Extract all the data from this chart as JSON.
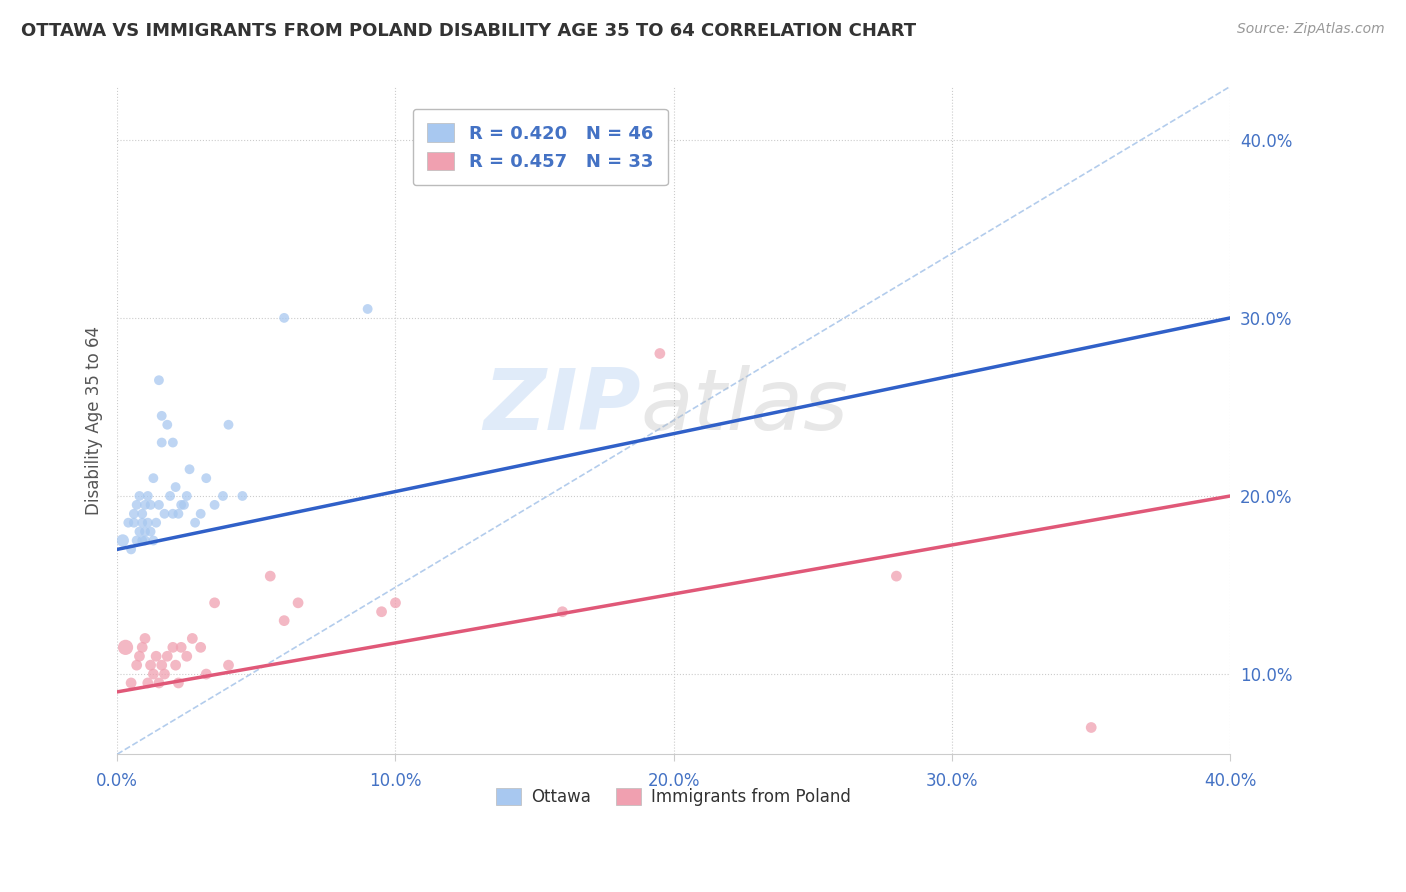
{
  "title": "OTTAWA VS IMMIGRANTS FROM POLAND DISABILITY AGE 35 TO 64 CORRELATION CHART",
  "source": "Source: ZipAtlas.com",
  "ylabel": "Disability Age 35 to 64",
  "legend_ottawa": "Ottawa",
  "legend_immigrants": "Immigrants from Poland",
  "r_ottawa": 0.42,
  "n_ottawa": 46,
  "r_immigrants": 0.457,
  "n_immigrants": 33,
  "x_min": 0.0,
  "x_max": 0.4,
  "y_min": 0.055,
  "y_max": 0.43,
  "y_ticks": [
    0.1,
    0.2,
    0.3,
    0.4
  ],
  "ottawa_color": "#A8C8F0",
  "immigrants_color": "#F0A0B0",
  "trend_ottawa_color": "#3060C8",
  "trend_immigrants_color": "#E05878",
  "ref_line_color": "#A0C0E8",
  "ottawa_x": [
    0.002,
    0.004,
    0.005,
    0.006,
    0.006,
    0.007,
    0.007,
    0.008,
    0.008,
    0.009,
    0.009,
    0.009,
    0.01,
    0.01,
    0.01,
    0.011,
    0.011,
    0.012,
    0.012,
    0.013,
    0.013,
    0.014,
    0.015,
    0.015,
    0.016,
    0.016,
    0.017,
    0.018,
    0.019,
    0.02,
    0.02,
    0.021,
    0.022,
    0.023,
    0.024,
    0.025,
    0.026,
    0.028,
    0.03,
    0.032,
    0.035,
    0.038,
    0.04,
    0.045,
    0.06,
    0.09
  ],
  "ottawa_y": [
    0.175,
    0.185,
    0.17,
    0.19,
    0.185,
    0.175,
    0.195,
    0.18,
    0.2,
    0.175,
    0.19,
    0.185,
    0.18,
    0.175,
    0.195,
    0.185,
    0.2,
    0.18,
    0.195,
    0.175,
    0.21,
    0.185,
    0.195,
    0.265,
    0.23,
    0.245,
    0.19,
    0.24,
    0.2,
    0.19,
    0.23,
    0.205,
    0.19,
    0.195,
    0.195,
    0.2,
    0.215,
    0.185,
    0.19,
    0.21,
    0.195,
    0.2,
    0.24,
    0.2,
    0.3,
    0.305
  ],
  "ottawa_sizes": [
    80,
    50,
    50,
    50,
    50,
    50,
    50,
    50,
    50,
    50,
    50,
    50,
    50,
    50,
    50,
    50,
    50,
    50,
    50,
    50,
    50,
    50,
    50,
    50,
    50,
    50,
    50,
    50,
    50,
    50,
    50,
    50,
    50,
    50,
    50,
    50,
    50,
    50,
    50,
    50,
    50,
    50,
    50,
    50,
    50,
    50
  ],
  "immigrants_x": [
    0.003,
    0.005,
    0.007,
    0.008,
    0.009,
    0.01,
    0.011,
    0.012,
    0.013,
    0.014,
    0.015,
    0.016,
    0.017,
    0.018,
    0.02,
    0.021,
    0.022,
    0.023,
    0.025,
    0.027,
    0.03,
    0.032,
    0.035,
    0.04,
    0.055,
    0.06,
    0.065,
    0.095,
    0.1,
    0.16,
    0.195,
    0.28,
    0.35
  ],
  "immigrants_y": [
    0.115,
    0.095,
    0.105,
    0.11,
    0.115,
    0.12,
    0.095,
    0.105,
    0.1,
    0.11,
    0.095,
    0.105,
    0.1,
    0.11,
    0.115,
    0.105,
    0.095,
    0.115,
    0.11,
    0.12,
    0.115,
    0.1,
    0.14,
    0.105,
    0.155,
    0.13,
    0.14,
    0.135,
    0.14,
    0.135,
    0.28,
    0.155,
    0.07
  ],
  "immigrants_sizes": [
    120,
    60,
    60,
    60,
    60,
    60,
    60,
    60,
    60,
    60,
    60,
    60,
    60,
    60,
    60,
    60,
    60,
    60,
    60,
    60,
    60,
    60,
    60,
    60,
    60,
    60,
    60,
    60,
    60,
    60,
    60,
    60,
    60
  ],
  "trend_ottawa_start_y": 0.17,
  "trend_ottawa_end_y": 0.3,
  "trend_immigrants_start_y": 0.09,
  "trend_immigrants_end_y": 0.2
}
